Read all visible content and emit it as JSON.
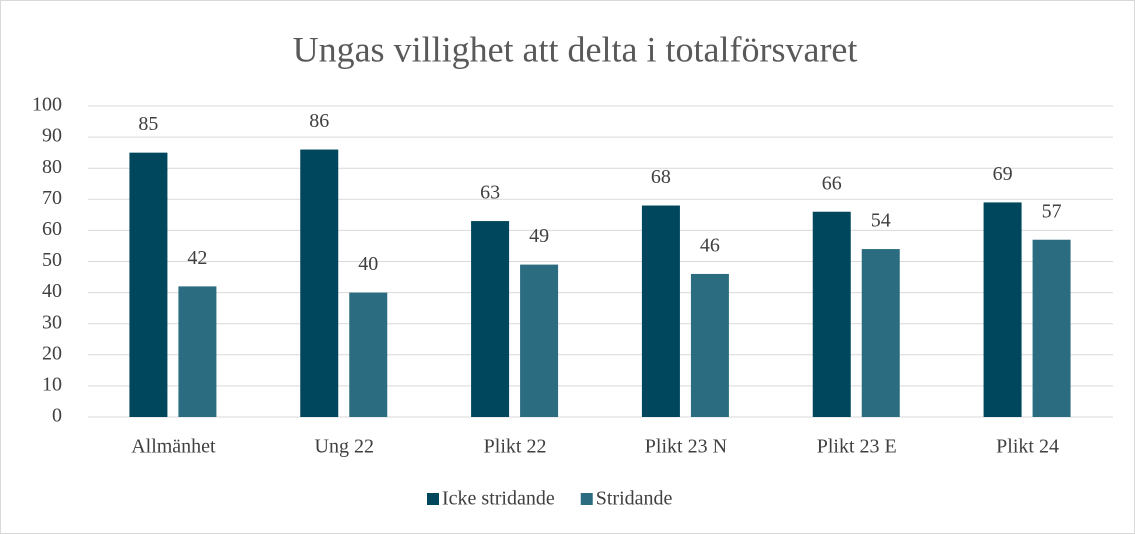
{
  "chart_data": {
    "type": "bar",
    "title": "Ungas villighet att delta i totalförsvaret",
    "categories": [
      "Allmänhet",
      "Ung 22",
      "Plikt 22",
      "Plikt 23 N",
      "Plikt 23 E",
      "Plikt 24"
    ],
    "series": [
      {
        "name": "Icke stridande",
        "color": "#00465c",
        "values": [
          85,
          86,
          63,
          68,
          66,
          69
        ]
      },
      {
        "name": "Stridande",
        "color": "#2b6c80",
        "values": [
          42,
          40,
          49,
          46,
          54,
          57
        ]
      }
    ],
    "ylim": [
      0,
      100
    ],
    "yticks": [
      0,
      10,
      20,
      30,
      40,
      50,
      60,
      70,
      80,
      90,
      100
    ],
    "grid": true,
    "legend": "bottom"
  }
}
